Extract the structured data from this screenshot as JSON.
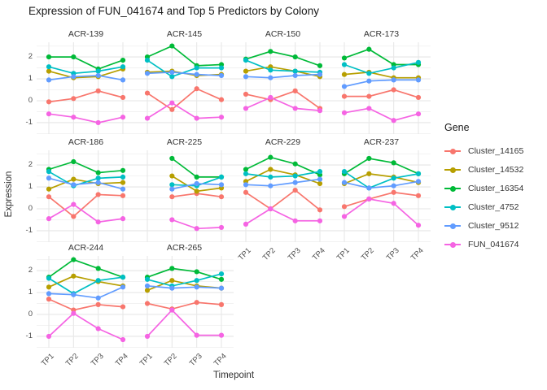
{
  "page_title": "Expression of FUN_041674 and Top 5 Predictors by Colony",
  "chart_data": {
    "type": "line",
    "title": "Expression of FUN_041674 and Top 5 Predictors by Colony",
    "xlabel": "Timepoint",
    "ylabel": "Expression",
    "categories": [
      "TP1",
      "TP2",
      "TP3",
      "TP4"
    ],
    "y_ticks": [
      2,
      1,
      0,
      -1
    ],
    "ylim": [
      -1.52,
      2.67
    ],
    "grid": {
      "h_major": [
        -1,
        0,
        1,
        2
      ],
      "h_minor": [
        -1.5,
        -0.5,
        0.5,
        1.5,
        2.5
      ],
      "v_major": "each timepoint"
    },
    "legend": {
      "title": "Gene",
      "position": "right"
    },
    "genes": [
      {
        "name": "Cluster_14165",
        "color": "#F8766D"
      },
      {
        "name": "Cluster_14532",
        "color": "#B79F00"
      },
      {
        "name": "Cluster_16354",
        "color": "#00BA38"
      },
      {
        "name": "Cluster_4752",
        "color": "#00BFC4"
      },
      {
        "name": "Cluster_9512",
        "color": "#619CFF"
      },
      {
        "name": "FUN_041674",
        "color": "#F564E3"
      }
    ],
    "facets": [
      {
        "name": "ACR-139",
        "row": 0,
        "col": 0,
        "show_y": true,
        "show_x": false,
        "series": {
          "Cluster_14165": [
            -0.05,
            0.1,
            0.45,
            0.15
          ],
          "Cluster_14532": [
            1.35,
            1.05,
            1.1,
            1.45
          ],
          "Cluster_16354": [
            2.0,
            2.0,
            1.45,
            1.85
          ],
          "Cluster_4752": [
            1.55,
            1.25,
            1.35,
            1.55
          ],
          "Cluster_9512": [
            0.95,
            1.1,
            1.15,
            0.95
          ],
          "FUN_041674": [
            -0.6,
            -0.75,
            -1.0,
            -0.75
          ]
        }
      },
      {
        "name": "ACR-145",
        "row": 0,
        "col": 1,
        "show_y": false,
        "show_x": false,
        "series": {
          "Cluster_14165": [
            0.35,
            -0.4,
            0.55,
            0.05
          ],
          "Cluster_14532": [
            1.3,
            1.35,
            1.15,
            1.2
          ],
          "Cluster_16354": [
            2.0,
            2.5,
            1.6,
            1.65
          ],
          "Cluster_4752": [
            1.85,
            1.1,
            1.5,
            1.5
          ],
          "Cluster_9512": [
            1.25,
            1.3,
            1.2,
            1.15
          ],
          "FUN_041674": [
            -0.8,
            -0.1,
            -0.8,
            -0.75
          ]
        }
      },
      {
        "name": "ACR-150",
        "row": 0,
        "col": 2,
        "show_y": false,
        "show_x": false,
        "series": {
          "Cluster_14165": [
            0.3,
            0.05,
            0.45,
            -0.35
          ],
          "Cluster_14532": [
            1.35,
            1.55,
            1.35,
            1.1
          ],
          "Cluster_16354": [
            1.9,
            2.25,
            2.0,
            1.6
          ],
          "Cluster_4752": [
            1.85,
            1.4,
            1.35,
            1.3
          ],
          "Cluster_9512": [
            1.1,
            1.05,
            1.15,
            1.2
          ],
          "FUN_041674": [
            -0.35,
            0.15,
            -0.35,
            -0.45
          ]
        }
      },
      {
        "name": "ACR-173",
        "row": 0,
        "col": 3,
        "show_y": false,
        "show_x": false,
        "series": {
          "Cluster_14165": [
            0.2,
            0.2,
            0.5,
            0.15
          ],
          "Cluster_14532": [
            1.2,
            1.3,
            1.05,
            1.05
          ],
          "Cluster_16354": [
            1.95,
            2.35,
            1.65,
            1.65
          ],
          "Cluster_4752": [
            1.65,
            1.25,
            1.5,
            1.75
          ],
          "Cluster_9512": [
            0.65,
            0.9,
            0.95,
            0.95
          ],
          "FUN_041674": [
            -0.55,
            -0.35,
            -0.9,
            -0.6
          ]
        }
      },
      {
        "name": "ACR-186",
        "row": 1,
        "col": 0,
        "show_y": true,
        "show_x": false,
        "series": {
          "Cluster_14165": [
            0.55,
            -0.35,
            0.65,
            0.6
          ],
          "Cluster_14532": [
            0.9,
            1.35,
            1.15,
            1.2
          ],
          "Cluster_16354": [
            1.8,
            2.15,
            1.65,
            1.75
          ],
          "Cluster_4752": [
            1.7,
            1.05,
            1.4,
            1.45
          ],
          "Cluster_9512": [
            1.4,
            1.1,
            1.2,
            0.9
          ],
          "FUN_041674": [
            -0.45,
            0.2,
            -0.6,
            -0.45
          ]
        }
      },
      {
        "name": "ACR-225",
        "row": 1,
        "col": 1,
        "show_y": false,
        "show_x": false,
        "series": {
          "Cluster_14165": [
            null,
            0.55,
            0.7,
            0.55
          ],
          "Cluster_14532": [
            null,
            1.5,
            0.8,
            0.95
          ],
          "Cluster_16354": [
            null,
            2.3,
            1.45,
            1.45
          ],
          "Cluster_4752": [
            null,
            1.1,
            1.05,
            1.45
          ],
          "Cluster_9512": [
            null,
            0.9,
            1.15,
            1.1
          ],
          "FUN_041674": [
            null,
            -0.5,
            -0.9,
            -0.85
          ]
        }
      },
      {
        "name": "ACR-229",
        "row": 1,
        "col": 2,
        "show_y": false,
        "show_x": true,
        "series": {
          "Cluster_14165": [
            0.75,
            0.0,
            0.85,
            -0.05
          ],
          "Cluster_14532": [
            1.25,
            1.8,
            1.55,
            1.15
          ],
          "Cluster_16354": [
            1.8,
            2.35,
            2.05,
            1.55
          ],
          "Cluster_4752": [
            1.6,
            1.45,
            1.5,
            1.7
          ],
          "Cluster_9512": [
            1.1,
            1.05,
            1.2,
            1.35
          ],
          "FUN_041674": [
            -0.7,
            0.0,
            -0.55,
            -0.55
          ]
        }
      },
      {
        "name": "ACR-237",
        "row": 1,
        "col": 3,
        "show_y": false,
        "show_x": true,
        "series": {
          "Cluster_14165": [
            0.1,
            0.45,
            0.75,
            0.6
          ],
          "Cluster_14532": [
            1.15,
            1.6,
            1.45,
            1.2
          ],
          "Cluster_16354": [
            1.6,
            2.3,
            2.1,
            1.6
          ],
          "Cluster_4752": [
            1.7,
            0.95,
            1.4,
            1.6
          ],
          "Cluster_9512": [
            1.2,
            0.95,
            1.05,
            1.25
          ],
          "FUN_041674": [
            -0.35,
            0.45,
            0.25,
            -0.75
          ]
        }
      },
      {
        "name": "ACR-244",
        "row": 2,
        "col": 0,
        "show_y": true,
        "show_x": true,
        "series": {
          "Cluster_14165": [
            0.7,
            0.2,
            0.45,
            0.35
          ],
          "Cluster_14532": [
            1.25,
            1.75,
            1.5,
            1.3
          ],
          "Cluster_16354": [
            1.7,
            2.5,
            2.1,
            1.7
          ],
          "Cluster_4752": [
            1.65,
            0.95,
            1.55,
            1.7
          ],
          "Cluster_9512": [
            0.95,
            0.9,
            0.75,
            1.25
          ],
          "FUN_041674": [
            -1.0,
            0.05,
            -0.65,
            -1.15
          ]
        }
      },
      {
        "name": "ACR-265",
        "row": 2,
        "col": 1,
        "show_y": false,
        "show_x": true,
        "series": {
          "Cluster_14165": [
            0.5,
            0.25,
            0.55,
            0.45
          ],
          "Cluster_14532": [
            1.1,
            1.55,
            1.3,
            1.2
          ],
          "Cluster_16354": [
            1.7,
            2.1,
            1.95,
            1.6
          ],
          "Cluster_4752": [
            1.6,
            1.3,
            1.55,
            1.85
          ],
          "Cluster_9512": [
            1.3,
            1.2,
            1.25,
            1.2
          ],
          "FUN_041674": [
            -1.0,
            0.2,
            -0.95,
            -0.95
          ]
        }
      }
    ]
  }
}
